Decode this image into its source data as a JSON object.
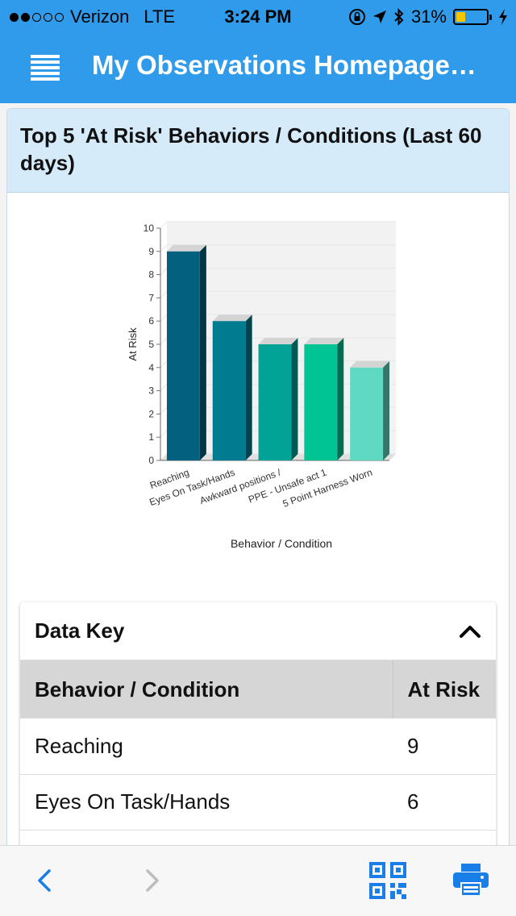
{
  "status_bar": {
    "signal_dots_filled": 2,
    "signal_dots_total": 5,
    "carrier": "Verizon",
    "network": "LTE",
    "time": "3:24 PM",
    "battery_percent": "31%",
    "battery_level": 0.31,
    "icons": [
      "orientation-lock-icon",
      "location-icon",
      "bluetooth-icon",
      "charging-icon"
    ]
  },
  "navbar": {
    "title": "My Observations Homepage…",
    "menu_icon": "hamburger-menu-icon",
    "background": "#2f9bea"
  },
  "card": {
    "title": "Top 5 'At Risk' Behaviors / Conditions (Last 60 days)"
  },
  "chart_data": {
    "type": "bar",
    "title": "",
    "xlabel": "Behavior / Condition",
    "ylabel": "At Risk",
    "ylim": [
      0,
      10
    ],
    "yticks": [
      0,
      1,
      2,
      3,
      4,
      5,
      6,
      7,
      8,
      9,
      10
    ],
    "grid": true,
    "categories": [
      "Reaching",
      "Eyes On Task/Hands",
      "Awkward positions /",
      "PPE - Unsafe act 1",
      "5 Point Harness Worn"
    ],
    "values": [
      9,
      6,
      5,
      5,
      4
    ],
    "colors": [
      "#03617f",
      "#017b8f",
      "#00a396",
      "#00c494",
      "#5fd9c1"
    ]
  },
  "data_key": {
    "title": "Data Key",
    "toggle_icon": "chevron-up-icon",
    "columns": [
      "Behavior / Condition",
      "At Risk"
    ],
    "rows": [
      {
        "behavior": "Reaching",
        "at_risk": "9"
      },
      {
        "behavior": "Eyes On Task/Hands",
        "at_risk": "6"
      }
    ]
  },
  "toolbar": {
    "back_icon": "chevron-left-icon",
    "forward_icon": "chevron-right-icon",
    "qr_icon": "qr-code-icon",
    "print_icon": "printer-icon",
    "accent": "#1a7ee8"
  }
}
